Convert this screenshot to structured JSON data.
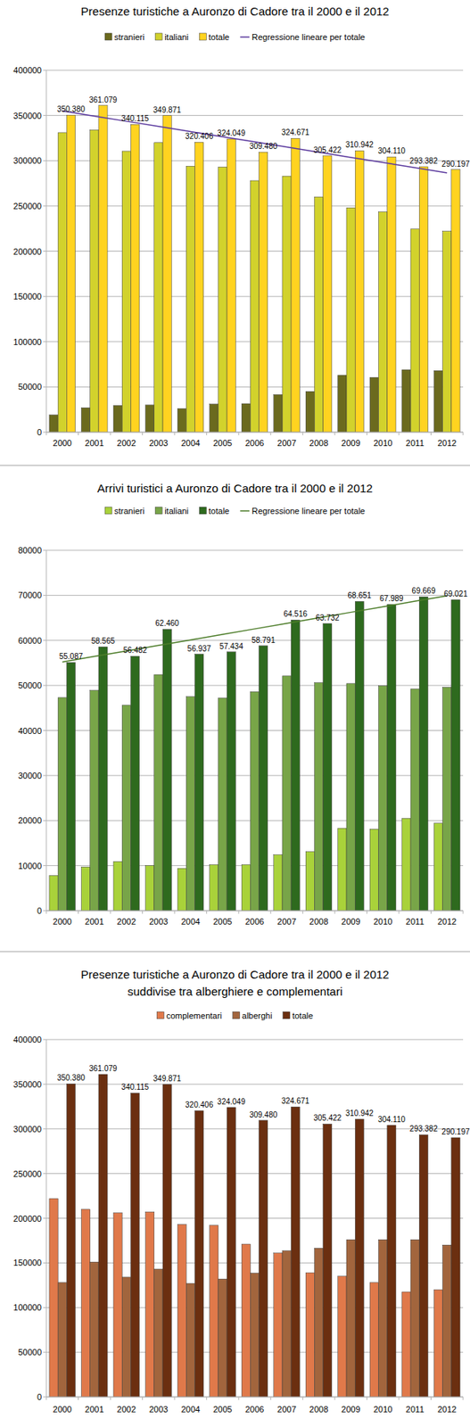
{
  "chart_data": [
    {
      "type": "bar",
      "title": "Presenze turistiche a Auronzo di Cadore tra il 2000 e il 2012",
      "categories": [
        "2000",
        "2001",
        "2002",
        "2003",
        "2004",
        "2005",
        "2006",
        "2007",
        "2008",
        "2009",
        "2010",
        "2011",
        "2012"
      ],
      "ylim": [
        0,
        400000
      ],
      "yticks": [
        0,
        50000,
        100000,
        150000,
        200000,
        250000,
        300000,
        350000,
        400000
      ],
      "grid": true,
      "series": [
        {
          "name": "stranieri",
          "color": "#6b6a1e",
          "values": [
            19000,
            27000,
            29500,
            30000,
            26000,
            31000,
            31500,
            41500,
            45000,
            63000,
            60500,
            69000,
            68000
          ]
        },
        {
          "name": "italiani",
          "color": "#d2d22c",
          "values": [
            331000,
            334000,
            310500,
            320000,
            294000,
            293000,
            278000,
            283000,
            260000,
            248000,
            243500,
            224500,
            222000
          ]
        },
        {
          "name": "totale",
          "color": "#ffd320",
          "data_labels": true,
          "values": [
            350380,
            361079,
            340115,
            349871,
            320406,
            324049,
            309480,
            324671,
            305422,
            310942,
            304110,
            293382,
            290197
          ],
          "value_labels": [
            "350.380",
            "361.079",
            "340.115",
            "349.871",
            "320.406",
            "324.049",
            "309.480",
            "324.671",
            "305.422",
            "310.942",
            "304.110",
            "293.382",
            "290.197"
          ]
        },
        {
          "name": "Regressione lineare per totale",
          "type": "line",
          "color": "#5b3a9e",
          "values": [
            355000,
            349300,
            343600,
            337900,
            332200,
            326500,
            320800,
            315100,
            309400,
            303700,
            298000,
            292300,
            286600
          ]
        }
      ]
    },
    {
      "type": "bar",
      "title": "Arrivi turistici a Auronzo di Cadore tra il 2000 e il 2012",
      "categories": [
        "2000",
        "2001",
        "2002",
        "2003",
        "2004",
        "2005",
        "2006",
        "2007",
        "2008",
        "2009",
        "2010",
        "2011",
        "2012"
      ],
      "ylim": [
        0,
        80000
      ],
      "yticks": [
        0,
        10000,
        20000,
        30000,
        40000,
        50000,
        60000,
        70000,
        80000
      ],
      "grid": true,
      "series": [
        {
          "name": "stranieri",
          "color": "#a9d23a",
          "values": [
            7800,
            9700,
            10900,
            10000,
            9400,
            10200,
            10200,
            12400,
            13100,
            18300,
            18100,
            20500,
            19400
          ]
        },
        {
          "name": "italiani",
          "color": "#78a548",
          "values": [
            47300,
            48900,
            45600,
            52400,
            47500,
            47200,
            48600,
            52100,
            50600,
            50400,
            49900,
            49200,
            49600
          ]
        },
        {
          "name": "totale",
          "color": "#2e6a1e",
          "data_labels": true,
          "values": [
            55087,
            58565,
            56482,
            62460,
            56937,
            57434,
            58791,
            64516,
            63732,
            68651,
            67989,
            69669,
            69021
          ],
          "value_labels": [
            "55.087",
            "58.565",
            "56.482",
            "62.460",
            "56.937",
            "57.434",
            "58.791",
            "64.516",
            "63.732",
            "68.651",
            "67.989",
            "69.669",
            "69.021"
          ]
        },
        {
          "name": "Regressione lineare per totale",
          "type": "line",
          "color": "#4d7d2a",
          "values": [
            55200,
            56430,
            57650,
            58880,
            60100,
            61330,
            62550,
            63780,
            65000,
            66230,
            67450,
            68680,
            69900
          ]
        }
      ]
    },
    {
      "type": "bar",
      "title": "Presenze turistiche a Auronzo di Cadore tra il 2000 e il 2012",
      "subtitle": "suddivise tra alberghiere e complementari",
      "categories": [
        "2000",
        "2001",
        "2002",
        "2003",
        "2004",
        "2005",
        "2006",
        "2007",
        "2008",
        "2009",
        "2010",
        "2011",
        "2012"
      ],
      "ylim": [
        0,
        400000
      ],
      "yticks": [
        0,
        50000,
        100000,
        150000,
        200000,
        250000,
        300000,
        350000,
        400000
      ],
      "grid": true,
      "series": [
        {
          "name": "complementari",
          "color": "#e0794a",
          "values": [
            222000,
            210000,
            206000,
            207000,
            193000,
            192000,
            171000,
            161000,
            139000,
            135000,
            128000,
            117500,
            120000
          ]
        },
        {
          "name": "alberghi",
          "color": "#a2653d",
          "values": [
            128000,
            151000,
            134000,
            143000,
            127000,
            132000,
            138500,
            163500,
            166500,
            176000,
            176000,
            176000,
            170000
          ]
        },
        {
          "name": "totale",
          "color": "#6b2f10",
          "data_labels": true,
          "values": [
            350380,
            361079,
            340115,
            349871,
            320406,
            324049,
            309480,
            324671,
            305422,
            310942,
            304110,
            293382,
            290197
          ],
          "value_labels": [
            "350.380",
            "361.079",
            "340.115",
            "349.871",
            "320.406",
            "324.049",
            "309.480",
            "324.671",
            "305.422",
            "310.942",
            "304.110",
            "293.382",
            "290.197"
          ]
        }
      ]
    }
  ]
}
